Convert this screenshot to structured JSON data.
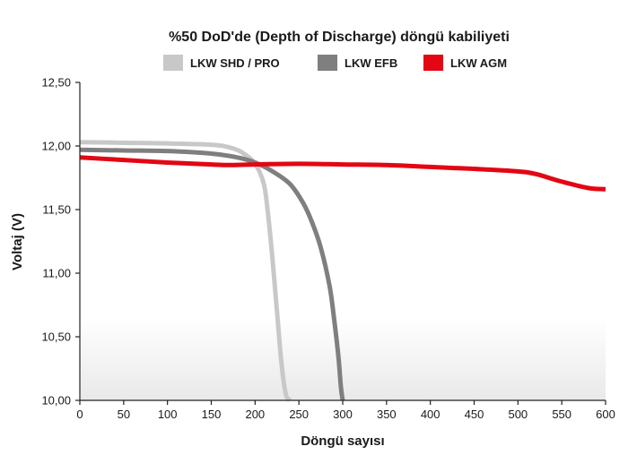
{
  "chart_data": {
    "type": "line",
    "title": "%50 DoD'de (Depth of Discharge) döngü kabiliyeti",
    "xlabel": "Döngü sayısı",
    "ylabel": "Voltaj (V)",
    "xlim": [
      0,
      600
    ],
    "ylim": [
      10.0,
      12.5
    ],
    "x_ticks": [
      "0",
      "50",
      "100",
      "150",
      "200",
      "250",
      "300",
      "350",
      "400",
      "450",
      "500",
      "550",
      "600"
    ],
    "y_ticks": [
      "10,00",
      "10,50",
      "11,00",
      "11,50",
      "12,00",
      "12,50"
    ],
    "legend_position": "top",
    "grid": false,
    "series": [
      {
        "name": "LKW SHD / PRO",
        "color": "#c8c8c8",
        "x": [
          0,
          50,
          100,
          150,
          170,
          185,
          200,
          210,
          215,
          220,
          225,
          230,
          235,
          240
        ],
        "y": [
          12.03,
          12.025,
          12.02,
          12.01,
          11.99,
          11.95,
          11.86,
          11.7,
          11.45,
          11.1,
          10.7,
          10.3,
          10.05,
          10.0
        ]
      },
      {
        "name": "LKW EFB",
        "color": "#7f7f7f",
        "x": [
          0,
          50,
          100,
          150,
          180,
          200,
          220,
          240,
          255,
          265,
          275,
          285,
          290,
          295,
          298,
          300
        ],
        "y": [
          11.97,
          11.965,
          11.96,
          11.94,
          11.91,
          11.87,
          11.8,
          11.7,
          11.55,
          11.4,
          11.2,
          10.9,
          10.65,
          10.35,
          10.1,
          10.0
        ]
      },
      {
        "name": "LKW AGM",
        "color": "#e30613",
        "x": [
          0,
          50,
          100,
          150,
          170,
          200,
          250,
          300,
          350,
          400,
          450,
          500,
          520,
          550,
          580,
          600
        ],
        "y": [
          11.91,
          11.89,
          11.87,
          11.855,
          11.85,
          11.855,
          11.86,
          11.855,
          11.85,
          11.835,
          11.82,
          11.8,
          11.78,
          11.72,
          11.67,
          11.66
        ]
      }
    ]
  }
}
